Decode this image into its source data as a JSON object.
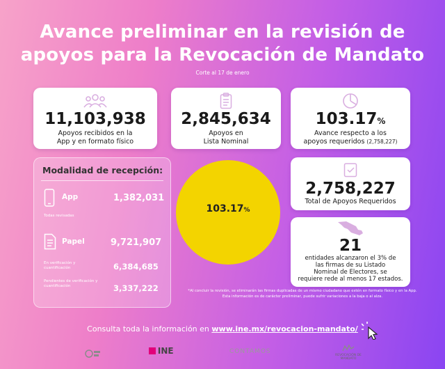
{
  "title": {
    "line1": "Avance preliminar en la revisión de",
    "line2": "apoyos para la Revocación de Mandato"
  },
  "subtitle": "Corte al 17 de enero",
  "cards": {
    "received": {
      "value": "11,103,938",
      "label1": "Apoyos recibidos en la",
      "label2": "App y en formato físico",
      "icon": "people-icon"
    },
    "nominal": {
      "value": "2,845,634",
      "label1": "Apoyos en",
      "label2": "Lista Nominal",
      "icon": "clipboard-icon"
    },
    "progress": {
      "value": "103.17",
      "suffix": "%",
      "label1": "Avance respecto a los",
      "label2": "apoyos requeridos",
      "label2_extra": "(2,758,227)",
      "icon": "pie-chart-icon"
    },
    "required": {
      "value": "2,758,227",
      "label": "Total de Apoyos Requeridos",
      "icon": "checklist-icon"
    },
    "entities": {
      "value": "21",
      "label1": "entidades alcanzaron el 3% de",
      "label2": "las firmas de su Listado",
      "label3": "Nominal de Electores, se",
      "label4": "requiere rede al menos 17 estados.",
      "icon": "mexico-map-icon"
    }
  },
  "modalidad": {
    "title": "Modalidad de recepción:",
    "app": {
      "label": "App",
      "value": "1,382,031",
      "note": "Todas revisadas",
      "icon": "phone-icon"
    },
    "papel": {
      "label": "Papel",
      "value": "9,721,907",
      "icon": "document-icon",
      "sub1_note": "En verificación y cuantificación",
      "sub1_value": "6,384,685",
      "sub2_note": "Pendientes de verificación y cuantificación",
      "sub2_value": "3,337,222"
    }
  },
  "progress_circle": {
    "value": "103.17",
    "suffix": "%",
    "fraction": 1.0317,
    "color": "#f3d400"
  },
  "footnote": "*Al concluir la revisión, se eliminarán las firmas duplicadas de un mismo ciudadano que estén en formato físico y en la App. Esta información es de carácter preliminar, puede sufrir variaciones a la baja o al alza.",
  "consulta": {
    "text": "Consulta toda la información en",
    "link": "www.ine.mx/revocacion-mandato/"
  },
  "logos": {
    "ine": "INE",
    "contamos": "CONTAMOS",
    "revocacion": "REVOCACIÓN DE MANDATO"
  },
  "colors": {
    "accent_yellow": "#f3d400",
    "text_dark": "#1a1a1a",
    "gradient_start": "#f7a3c9",
    "gradient_end": "#8a45f2"
  }
}
